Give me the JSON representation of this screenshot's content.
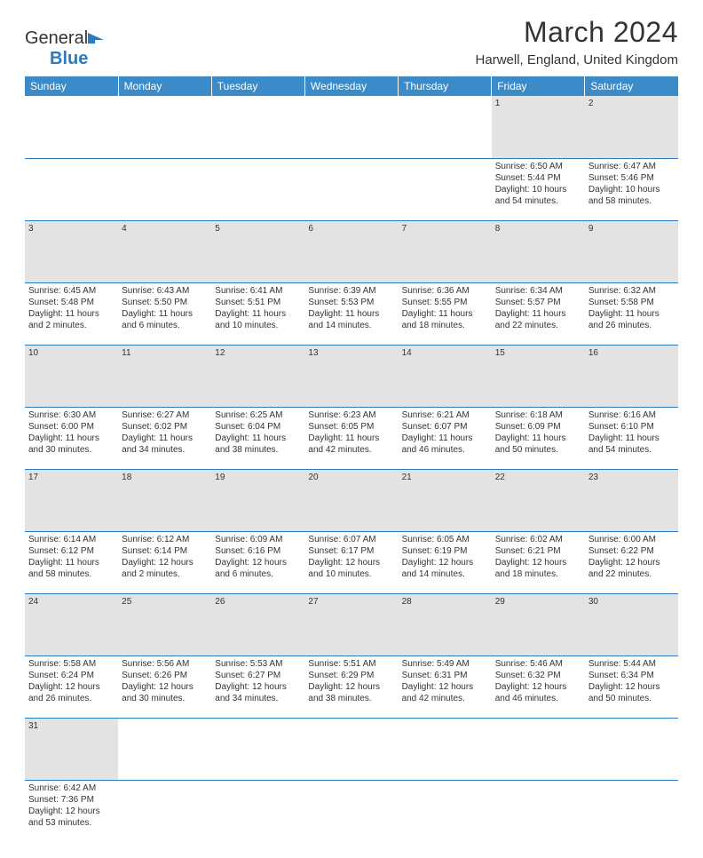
{
  "logo": {
    "word1": "General",
    "word2": "Blue"
  },
  "title": "March 2024",
  "location": "Harwell, England, United Kingdom",
  "colors": {
    "header_bg": "#3b8bc9",
    "header_text": "#ffffff",
    "daynum_bg": "#e3e3e3",
    "border": "#2b7bbd",
    "logo_blue": "#2b7bbd"
  },
  "weekdays": [
    "Sunday",
    "Monday",
    "Tuesday",
    "Wednesday",
    "Thursday",
    "Friday",
    "Saturday"
  ],
  "weeks": [
    {
      "nums": [
        "",
        "",
        "",
        "",
        "",
        "1",
        "2"
      ],
      "cells": [
        null,
        null,
        null,
        null,
        null,
        {
          "sunrise": "Sunrise: 6:50 AM",
          "sunset": "Sunset: 5:44 PM",
          "day1": "Daylight: 10 hours",
          "day2": "and 54 minutes."
        },
        {
          "sunrise": "Sunrise: 6:47 AM",
          "sunset": "Sunset: 5:46 PM",
          "day1": "Daylight: 10 hours",
          "day2": "and 58 minutes."
        }
      ]
    },
    {
      "nums": [
        "3",
        "4",
        "5",
        "6",
        "7",
        "8",
        "9"
      ],
      "cells": [
        {
          "sunrise": "Sunrise: 6:45 AM",
          "sunset": "Sunset: 5:48 PM",
          "day1": "Daylight: 11 hours",
          "day2": "and 2 minutes."
        },
        {
          "sunrise": "Sunrise: 6:43 AM",
          "sunset": "Sunset: 5:50 PM",
          "day1": "Daylight: 11 hours",
          "day2": "and 6 minutes."
        },
        {
          "sunrise": "Sunrise: 6:41 AM",
          "sunset": "Sunset: 5:51 PM",
          "day1": "Daylight: 11 hours",
          "day2": "and 10 minutes."
        },
        {
          "sunrise": "Sunrise: 6:39 AM",
          "sunset": "Sunset: 5:53 PM",
          "day1": "Daylight: 11 hours",
          "day2": "and 14 minutes."
        },
        {
          "sunrise": "Sunrise: 6:36 AM",
          "sunset": "Sunset: 5:55 PM",
          "day1": "Daylight: 11 hours",
          "day2": "and 18 minutes."
        },
        {
          "sunrise": "Sunrise: 6:34 AM",
          "sunset": "Sunset: 5:57 PM",
          "day1": "Daylight: 11 hours",
          "day2": "and 22 minutes."
        },
        {
          "sunrise": "Sunrise: 6:32 AM",
          "sunset": "Sunset: 5:58 PM",
          "day1": "Daylight: 11 hours",
          "day2": "and 26 minutes."
        }
      ]
    },
    {
      "nums": [
        "10",
        "11",
        "12",
        "13",
        "14",
        "15",
        "16"
      ],
      "cells": [
        {
          "sunrise": "Sunrise: 6:30 AM",
          "sunset": "Sunset: 6:00 PM",
          "day1": "Daylight: 11 hours",
          "day2": "and 30 minutes."
        },
        {
          "sunrise": "Sunrise: 6:27 AM",
          "sunset": "Sunset: 6:02 PM",
          "day1": "Daylight: 11 hours",
          "day2": "and 34 minutes."
        },
        {
          "sunrise": "Sunrise: 6:25 AM",
          "sunset": "Sunset: 6:04 PM",
          "day1": "Daylight: 11 hours",
          "day2": "and 38 minutes."
        },
        {
          "sunrise": "Sunrise: 6:23 AM",
          "sunset": "Sunset: 6:05 PM",
          "day1": "Daylight: 11 hours",
          "day2": "and 42 minutes."
        },
        {
          "sunrise": "Sunrise: 6:21 AM",
          "sunset": "Sunset: 6:07 PM",
          "day1": "Daylight: 11 hours",
          "day2": "and 46 minutes."
        },
        {
          "sunrise": "Sunrise: 6:18 AM",
          "sunset": "Sunset: 6:09 PM",
          "day1": "Daylight: 11 hours",
          "day2": "and 50 minutes."
        },
        {
          "sunrise": "Sunrise: 6:16 AM",
          "sunset": "Sunset: 6:10 PM",
          "day1": "Daylight: 11 hours",
          "day2": "and 54 minutes."
        }
      ]
    },
    {
      "nums": [
        "17",
        "18",
        "19",
        "20",
        "21",
        "22",
        "23"
      ],
      "cells": [
        {
          "sunrise": "Sunrise: 6:14 AM",
          "sunset": "Sunset: 6:12 PM",
          "day1": "Daylight: 11 hours",
          "day2": "and 58 minutes."
        },
        {
          "sunrise": "Sunrise: 6:12 AM",
          "sunset": "Sunset: 6:14 PM",
          "day1": "Daylight: 12 hours",
          "day2": "and 2 minutes."
        },
        {
          "sunrise": "Sunrise: 6:09 AM",
          "sunset": "Sunset: 6:16 PM",
          "day1": "Daylight: 12 hours",
          "day2": "and 6 minutes."
        },
        {
          "sunrise": "Sunrise: 6:07 AM",
          "sunset": "Sunset: 6:17 PM",
          "day1": "Daylight: 12 hours",
          "day2": "and 10 minutes."
        },
        {
          "sunrise": "Sunrise: 6:05 AM",
          "sunset": "Sunset: 6:19 PM",
          "day1": "Daylight: 12 hours",
          "day2": "and 14 minutes."
        },
        {
          "sunrise": "Sunrise: 6:02 AM",
          "sunset": "Sunset: 6:21 PM",
          "day1": "Daylight: 12 hours",
          "day2": "and 18 minutes."
        },
        {
          "sunrise": "Sunrise: 6:00 AM",
          "sunset": "Sunset: 6:22 PM",
          "day1": "Daylight: 12 hours",
          "day2": "and 22 minutes."
        }
      ]
    },
    {
      "nums": [
        "24",
        "25",
        "26",
        "27",
        "28",
        "29",
        "30"
      ],
      "cells": [
        {
          "sunrise": "Sunrise: 5:58 AM",
          "sunset": "Sunset: 6:24 PM",
          "day1": "Daylight: 12 hours",
          "day2": "and 26 minutes."
        },
        {
          "sunrise": "Sunrise: 5:56 AM",
          "sunset": "Sunset: 6:26 PM",
          "day1": "Daylight: 12 hours",
          "day2": "and 30 minutes."
        },
        {
          "sunrise": "Sunrise: 5:53 AM",
          "sunset": "Sunset: 6:27 PM",
          "day1": "Daylight: 12 hours",
          "day2": "and 34 minutes."
        },
        {
          "sunrise": "Sunrise: 5:51 AM",
          "sunset": "Sunset: 6:29 PM",
          "day1": "Daylight: 12 hours",
          "day2": "and 38 minutes."
        },
        {
          "sunrise": "Sunrise: 5:49 AM",
          "sunset": "Sunset: 6:31 PM",
          "day1": "Daylight: 12 hours",
          "day2": "and 42 minutes."
        },
        {
          "sunrise": "Sunrise: 5:46 AM",
          "sunset": "Sunset: 6:32 PM",
          "day1": "Daylight: 12 hours",
          "day2": "and 46 minutes."
        },
        {
          "sunrise": "Sunrise: 5:44 AM",
          "sunset": "Sunset: 6:34 PM",
          "day1": "Daylight: 12 hours",
          "day2": "and 50 minutes."
        }
      ]
    },
    {
      "nums": [
        "31",
        "",
        "",
        "",
        "",
        "",
        ""
      ],
      "cells": [
        {
          "sunrise": "Sunrise: 6:42 AM",
          "sunset": "Sunset: 7:36 PM",
          "day1": "Daylight: 12 hours",
          "day2": "and 53 minutes."
        },
        null,
        null,
        null,
        null,
        null,
        null
      ]
    }
  ]
}
